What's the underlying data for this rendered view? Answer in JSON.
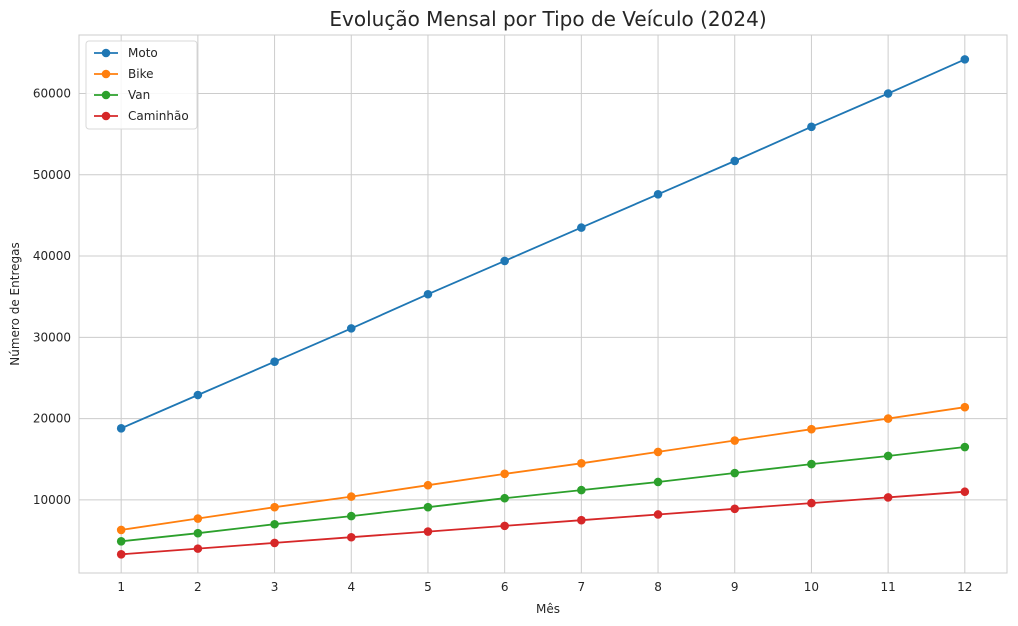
{
  "chart_data": {
    "type": "line",
    "title": "Evolução Mensal por Tipo de Veículo (2024)",
    "xlabel": "Mês",
    "ylabel": "Número de Entregas",
    "x": [
      1,
      2,
      3,
      4,
      5,
      6,
      7,
      8,
      9,
      10,
      11,
      12
    ],
    "xticks": [
      "1",
      "2",
      "3",
      "4",
      "5",
      "6",
      "7",
      "8",
      "9",
      "10",
      "11",
      "12"
    ],
    "yticks": [
      10000,
      20000,
      30000,
      40000,
      50000,
      60000
    ],
    "ytick_labels": [
      "10000",
      "20000",
      "30000",
      "40000",
      "50000",
      "60000"
    ],
    "xlim": [
      0.45,
      12.55
    ],
    "ylim": [
      1000,
      67200
    ],
    "grid": true,
    "legend_position": "top-left",
    "series": [
      {
        "name": "Moto",
        "color": "#1f77b4",
        "marker": "circle",
        "values": [
          18800,
          22900,
          27000,
          31100,
          35300,
          39400,
          43500,
          47600,
          51700,
          55900,
          60000,
          64200
        ]
      },
      {
        "name": "Bike",
        "color": "#ff7f0e",
        "marker": "circle",
        "values": [
          6300,
          7700,
          9100,
          10400,
          11800,
          13200,
          14500,
          15900,
          17300,
          18700,
          20000,
          21400
        ]
      },
      {
        "name": "Van",
        "color": "#2ca02c",
        "marker": "circle",
        "values": [
          4900,
          5900,
          7000,
          8000,
          9100,
          10200,
          11200,
          12200,
          13300,
          14400,
          15400,
          16500
        ]
      },
      {
        "name": "Caminhão",
        "color": "#d62728",
        "marker": "circle",
        "values": [
          3300,
          4000,
          4700,
          5400,
          6100,
          6800,
          7500,
          8200,
          8900,
          9600,
          10300,
          11000
        ]
      }
    ]
  }
}
